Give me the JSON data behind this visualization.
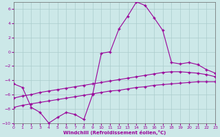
{
  "xlabel": "Windchill (Refroidissement éolien,°C)",
  "line_color": "#990099",
  "background_color": "#cce8e8",
  "grid_color": "#aacccc",
  "xlim": [
    0,
    23
  ],
  "ylim": [
    -10,
    7
  ],
  "yticks": [
    -10,
    -8,
    -6,
    -4,
    -2,
    0,
    2,
    4,
    6
  ],
  "xticks": [
    0,
    1,
    2,
    3,
    4,
    5,
    6,
    7,
    8,
    9,
    10,
    11,
    12,
    13,
    14,
    15,
    16,
    17,
    18,
    19,
    20,
    21,
    22,
    23
  ],
  "line1_x": [
    0,
    1,
    2,
    3,
    4,
    5,
    6,
    7,
    8,
    9,
    10,
    11,
    12,
    13,
    14,
    15,
    16,
    17,
    18,
    19,
    20,
    21,
    22,
    23
  ],
  "line1_y": [
    -4.5,
    -5.0,
    -7.8,
    -8.5,
    -10.0,
    -9.2,
    -8.5,
    -8.8,
    -9.5,
    -6.0,
    -0.2,
    0.0,
    3.2,
    5.0,
    7.0,
    6.5,
    4.8,
    3.0,
    -1.5,
    -1.7,
    -1.5,
    -1.8,
    -2.5,
    -3.0
  ],
  "line2_x": [
    0,
    1,
    2,
    3,
    4,
    5,
    6,
    7,
    8,
    9,
    10,
    11,
    12,
    13,
    14,
    15,
    16,
    17,
    18,
    19,
    20,
    21,
    22,
    23
  ],
  "line2_y": [
    -6.5,
    -6.2,
    -6.0,
    -5.7,
    -5.5,
    -5.3,
    -5.1,
    -4.9,
    -4.7,
    -4.5,
    -4.3,
    -4.1,
    -3.9,
    -3.7,
    -3.5,
    -3.3,
    -3.1,
    -2.9,
    -2.8,
    -2.8,
    -2.9,
    -3.0,
    -3.2,
    -3.5
  ],
  "line3_x": [
    0,
    1,
    2,
    3,
    4,
    5,
    6,
    7,
    8,
    9,
    10,
    11,
    12,
    13,
    14,
    15,
    16,
    17,
    18,
    19,
    20,
    21,
    22,
    23
  ],
  "line3_y": [
    -7.8,
    -7.5,
    -7.3,
    -7.1,
    -6.9,
    -6.7,
    -6.5,
    -6.3,
    -6.1,
    -5.9,
    -5.7,
    -5.5,
    -5.4,
    -5.2,
    -5.0,
    -4.9,
    -4.7,
    -4.6,
    -4.5,
    -4.4,
    -4.3,
    -4.2,
    -4.2,
    -4.2
  ]
}
